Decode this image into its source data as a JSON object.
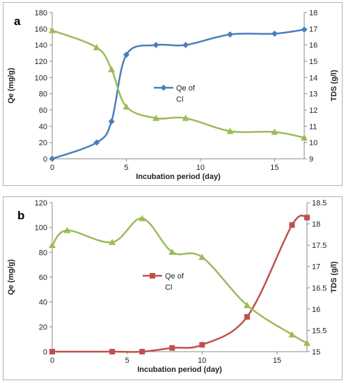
{
  "chart_data": [
    {
      "panel_label": "a",
      "type": "line",
      "xlabel": "Incubation period (day)",
      "ylabel": "Qe (mg/g)",
      "y2label": "TDS (g/l)",
      "xlim": [
        0,
        17
      ],
      "ylim": [
        0,
        180
      ],
      "y2lim": [
        9,
        18
      ],
      "xticks": [
        "0",
        "5",
        "10",
        "15"
      ],
      "yticks": [
        "0",
        "20",
        "40",
        "60",
        "80",
        "100",
        "120",
        "140",
        "160",
        "180"
      ],
      "y2ticks": [
        "9",
        "10",
        "11",
        "12",
        "13",
        "14",
        "15",
        "16",
        "17",
        "18"
      ],
      "grid": false,
      "legend_location": "center",
      "series": [
        {
          "name": "Qe of Cl",
          "axis": "left",
          "marker": "diamond",
          "color": "#4a7ebb",
          "x": [
            0,
            3,
            4,
            5,
            7,
            9,
            12,
            15,
            17
          ],
          "y": [
            0,
            20,
            46,
            128,
            140,
            140,
            153,
            154,
            159
          ]
        },
        {
          "axis": "right",
          "marker": "triangle",
          "color": "#9bbb59",
          "x": [
            0,
            3,
            4,
            5,
            7,
            9,
            12,
            15,
            17
          ],
          "y": [
            16.9,
            15.85,
            14.5,
            12.2,
            11.5,
            11.5,
            10.7,
            10.65,
            10.3
          ]
        }
      ]
    },
    {
      "panel_label": "b",
      "type": "line",
      "xlabel": "Incubation period (day)",
      "ylabel": "Qe (mg/g)",
      "y2label": "TDS (g/l)",
      "xlim": [
        0,
        17
      ],
      "ylim": [
        0,
        120
      ],
      "y2lim": [
        15,
        18.5
      ],
      "xticks": [
        "0",
        "5",
        "10",
        "15"
      ],
      "yticks": [
        "0",
        "20",
        "40",
        "60",
        "80",
        "100",
        "120"
      ],
      "y2ticks": [
        "15",
        "15.5",
        "16",
        "16.5",
        "17",
        "17.5",
        "18",
        "18.5"
      ],
      "grid": false,
      "legend_location": "center",
      "series": [
        {
          "name": "Qe of Cl",
          "axis": "left",
          "marker": "square",
          "color": "#c0504d",
          "x": [
            0,
            4,
            6,
            8,
            10,
            13,
            16,
            17
          ],
          "y": [
            0,
            0,
            0,
            3,
            5.5,
            28,
            102,
            108
          ]
        },
        {
          "axis": "right",
          "marker": "triangle",
          "color": "#9bbb59",
          "x": [
            0,
            1,
            4,
            6,
            8,
            10,
            13,
            16,
            17
          ],
          "y": [
            17.5,
            17.85,
            17.57,
            18.13,
            17.34,
            17.22,
            16.09,
            15.4,
            15.2
          ]
        }
      ]
    }
  ]
}
